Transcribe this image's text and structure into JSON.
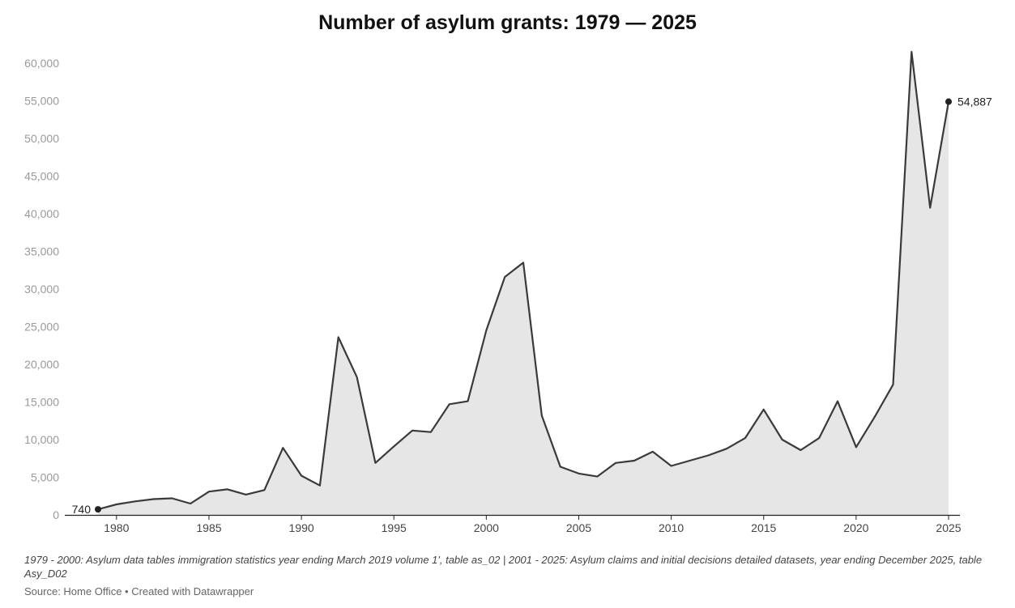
{
  "chart_data": {
    "type": "area",
    "title": "Number of asylum grants: 1979 — 2025",
    "xlabel": "",
    "ylabel": "",
    "xlim": [
      1978,
      2026
    ],
    "ylim": [
      0,
      62000
    ],
    "grid": false,
    "legend": "none",
    "x_ticks": [
      1980,
      1985,
      1990,
      1995,
      2000,
      2005,
      2010,
      2015,
      2020,
      2025
    ],
    "y_ticks": [
      0,
      5000,
      10000,
      15000,
      20000,
      25000,
      30000,
      35000,
      40000,
      45000,
      50000,
      55000,
      60000
    ],
    "y_tick_labels": [
      "0",
      "5,000",
      "10,000",
      "15,000",
      "20,000",
      "25,000",
      "30,000",
      "35,000",
      "40,000",
      "45,000",
      "50,000",
      "55,000",
      "60,000"
    ],
    "x": [
      1979,
      1980,
      1981,
      1982,
      1983,
      1984,
      1985,
      1986,
      1987,
      1988,
      1989,
      1990,
      1991,
      1992,
      1993,
      1994,
      1995,
      1996,
      1997,
      1998,
      1999,
      2000,
      2001,
      2002,
      2003,
      2004,
      2005,
      2006,
      2007,
      2008,
      2009,
      2010,
      2011,
      2012,
      2013,
      2014,
      2015,
      2016,
      2017,
      2018,
      2019,
      2020,
      2021,
      2022,
      2023,
      2024,
      2025
    ],
    "values": [
      740,
      1400,
      1800,
      2100,
      2200,
      1500,
      3100,
      3400,
      2700,
      3300,
      8900,
      5200,
      3900,
      23600,
      18300,
      6900,
      9100,
      11200,
      11000,
      14700,
      15100,
      24500,
      31600,
      33500,
      13200,
      6400,
      5500,
      5100,
      6900,
      7200,
      8400,
      6500,
      7200,
      7900,
      8800,
      10200,
      14000,
      10000,
      8600,
      10200,
      15100,
      9000,
      13000,
      17300,
      61500,
      40800,
      54887
    ],
    "data_labels": [
      {
        "x": 1979,
        "value": 740,
        "text": "740",
        "side": "left"
      },
      {
        "x": 2025,
        "value": 54887,
        "text": "54,887",
        "side": "right"
      }
    ],
    "colors": {
      "line": "#3a3a3a",
      "fill": "#e6e6e6",
      "axis": "#222222",
      "ytick": "#9a9a9a"
    }
  },
  "footer": {
    "notes": "1979 - 2000: Asylum data tables immigration statistics year ending March 2019 volume 1', table as_02 | 2001 - 2025: Asylum claims and initial decisions detailed datasets, year ending December 2025, table Asy_D02",
    "source": "Source: Home Office • Created with Datawrapper"
  }
}
